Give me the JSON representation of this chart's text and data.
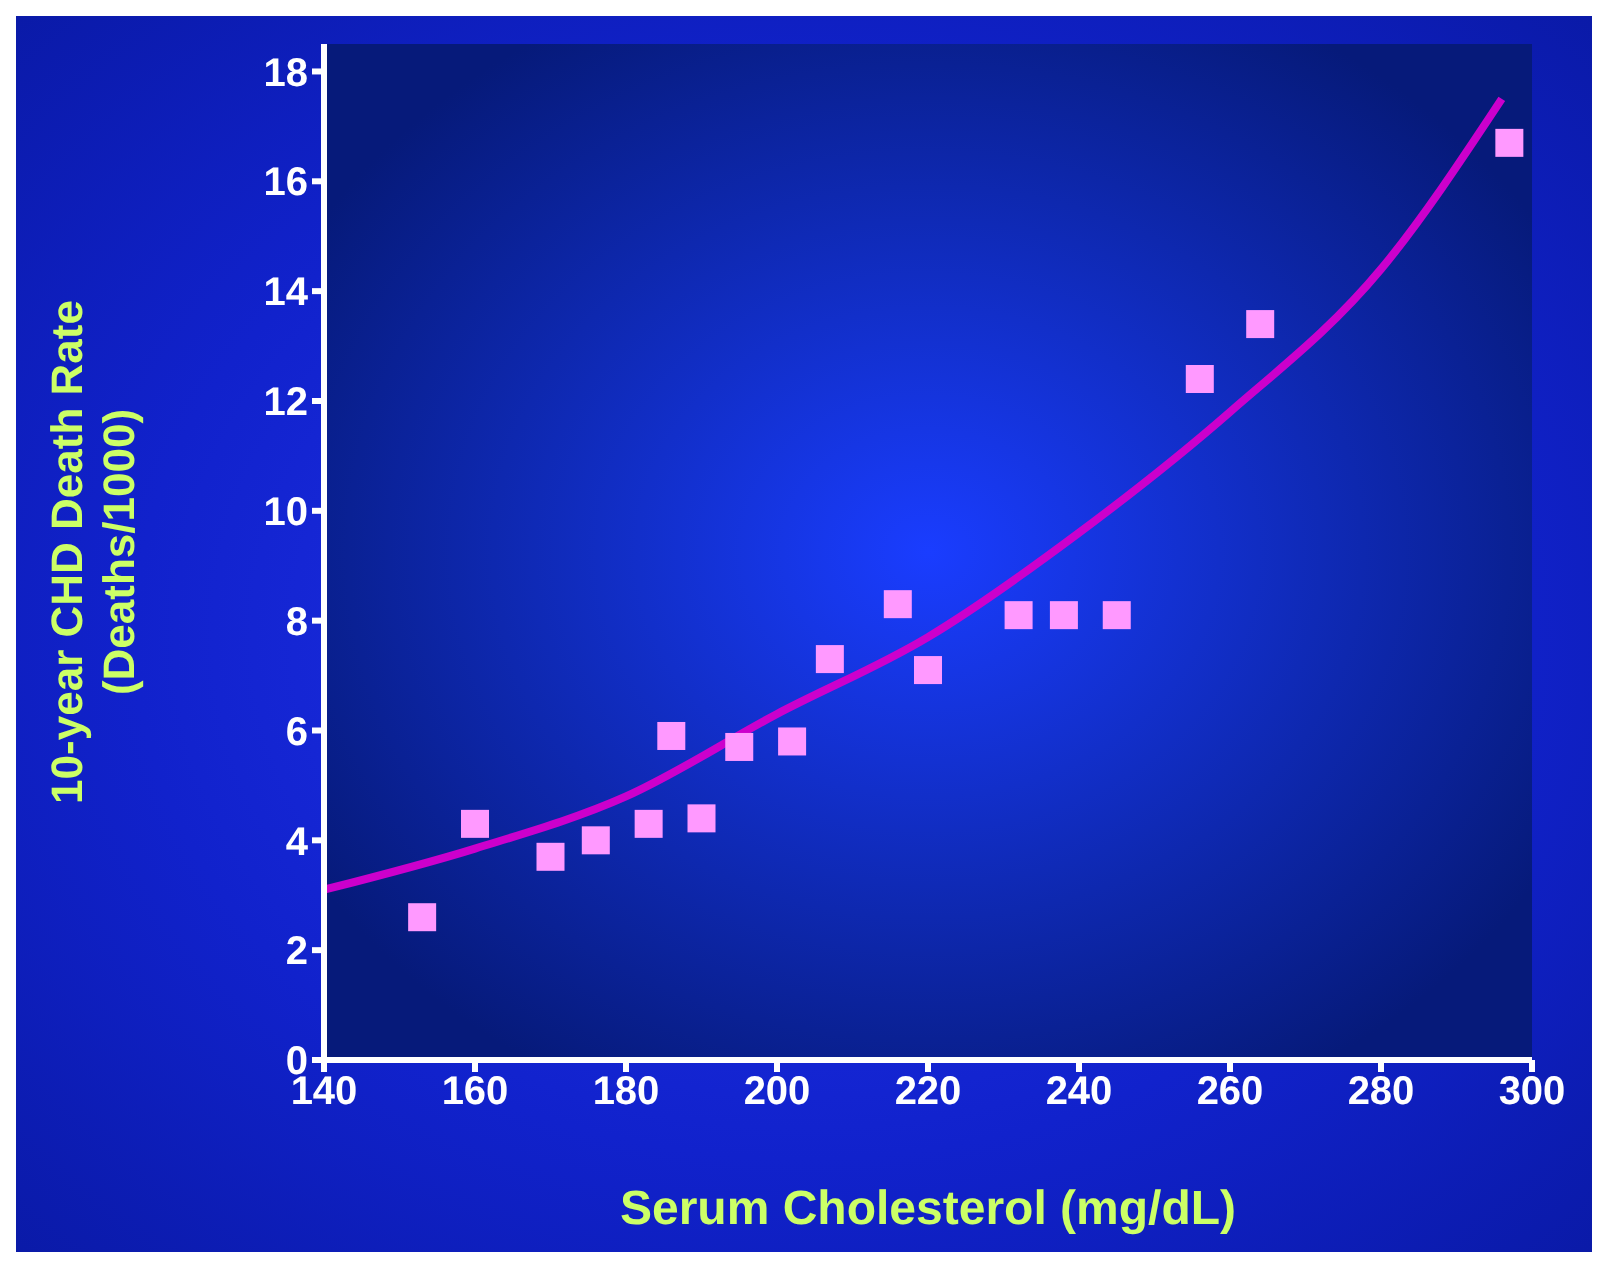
{
  "chart_data": {
    "type": "scatter",
    "xlabel": "Serum Cholesterol (mg/dL)",
    "ylabel": "10-year CHD Death Rate\n(Deaths/1000)",
    "x": [
      153,
      160,
      170,
      176,
      183,
      186,
      190,
      195,
      202,
      207,
      216,
      220,
      232,
      238,
      245,
      256,
      264,
      297
    ],
    "series": [
      {
        "color": "#ff99ff",
        "marker": "square",
        "values": [
          2.6,
          4.3,
          3.7,
          4.0,
          4.3,
          5.9,
          4.4,
          5.7,
          5.8,
          7.3,
          8.3,
          7.1,
          8.1,
          8.1,
          8.1,
          12.4,
          13.4,
          16.7
        ]
      },
      {
        "type": "line",
        "marker": "none",
        "color": "#cc00cc",
        "x": [
          140,
          160,
          180,
          200,
          220,
          240,
          260,
          280,
          296
        ],
        "values": [
          3.1,
          3.85,
          4.8,
          6.3,
          7.7,
          9.6,
          11.8,
          14.4,
          17.5
        ]
      }
    ],
    "xlim": [
      140,
      300
    ],
    "xticks": [
      140,
      160,
      180,
      200,
      220,
      240,
      260,
      280,
      300
    ],
    "ylim": [
      0,
      18.5
    ],
    "yticks": [
      0,
      2,
      4,
      6,
      8,
      10,
      12,
      14,
      16,
      18
    ],
    "grid": false,
    "legend": false
  }
}
